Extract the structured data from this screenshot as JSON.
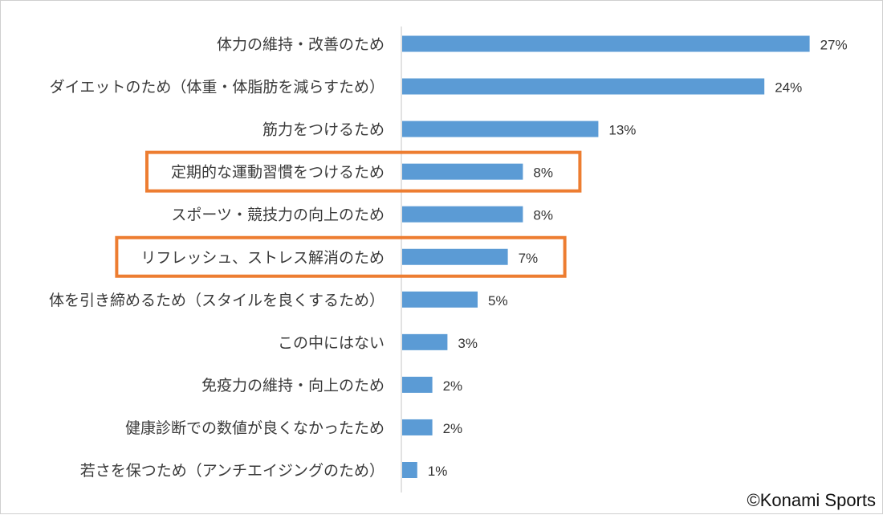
{
  "chart_data": {
    "type": "bar",
    "orientation": "horizontal",
    "categories": [
      "体力の維持・改善のため",
      "ダイエットのため（体重・体脂肪を減らすため）",
      "筋力をつけるため",
      "定期的な運動習慣をつけるため",
      "スポーツ・競技力の向上のため",
      "リフレッシュ、ストレス解消のため",
      "体を引き締めるため（スタイルを良くするため）",
      "この中にはない",
      "免疫力の維持・向上のため",
      "健康診断での数値が良くなかったため",
      "若さを保つため（アンチエイジングのため）"
    ],
    "values": [
      27,
      24,
      13,
      8,
      8,
      7,
      5,
      3,
      2,
      2,
      1
    ],
    "value_labels": [
      "27%",
      "24%",
      "13%",
      "8%",
      "8%",
      "7%",
      "5%",
      "3%",
      "2%",
      "2%",
      "1%"
    ],
    "highlighted": [
      "定期的な運動習慣をつけるため",
      "リフレッシュ、ストレス解消のため"
    ],
    "xlim": [
      0,
      28
    ],
    "grid": false,
    "bar_color": "#5b9bd5",
    "highlight_color": "#ed7d31",
    "axis_color": "#d9d9d9"
  },
  "credit": "©Konami Sports"
}
